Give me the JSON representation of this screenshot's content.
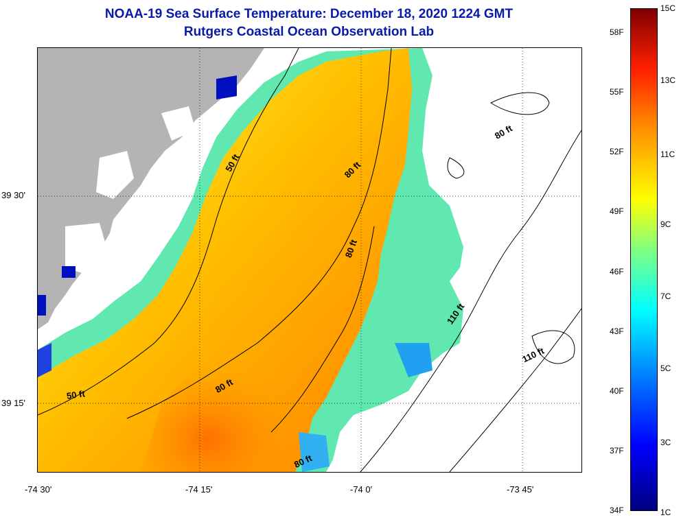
{
  "header": {
    "title": "NOAA-19 Sea Surface Temperature:  December 18, 2020 1224 GMT",
    "subtitle": "Rutgers Coastal Ocean Observation Lab"
  },
  "map": {
    "lat_labels": [
      "39 30'",
      "39 15'"
    ],
    "lon_labels": [
      "-74 30'",
      "-74 15'",
      "-74 0'",
      "-73 45'"
    ],
    "contour_labels": [
      "50 ft",
      "80 ft",
      "80 ft",
      "80 ft",
      "80 ft",
      "80 ft",
      "110 ft",
      "110 ft",
      "50 ft"
    ],
    "colors": {
      "land": "#b4b4b4",
      "ocean_nodata": "#ffffff",
      "contour": "#000000"
    }
  },
  "colorbar": {
    "celsius_labels": [
      "15C",
      "13C",
      "11C",
      "9C",
      "7C",
      "5C",
      "3C",
      "1C"
    ],
    "fahrenheit_labels": [
      "58F",
      "55F",
      "52F",
      "49F",
      "46F",
      "43F",
      "40F",
      "37F",
      "34F"
    ]
  }
}
